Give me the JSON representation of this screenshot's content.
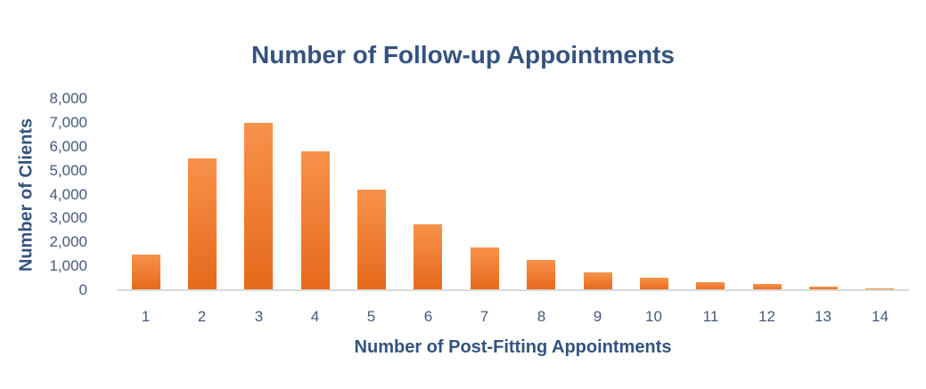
{
  "chart_data": {
    "type": "bar",
    "title": "Number of Follow-up Appointments",
    "xlabel": "Number of Post-Fitting Appointments",
    "ylabel": "Number of Clients",
    "categories": [
      "1",
      "2",
      "3",
      "4",
      "5",
      "6",
      "7",
      "8",
      "9",
      "10",
      "11",
      "12",
      "13",
      "14"
    ],
    "values": [
      1500,
      5500,
      7000,
      5800,
      4200,
      2750,
      1800,
      1270,
      750,
      520,
      340,
      250,
      140,
      70
    ],
    "ylim": [
      0,
      8000
    ],
    "ytick_step": 1000,
    "ytick_labels": [
      "0",
      "1,000",
      "2,000",
      "3,000",
      "4,000",
      "5,000",
      "6,000",
      "7,000",
      "8,000"
    ],
    "grid": false,
    "legend_position": "none",
    "colors": {
      "bar_gradient_top": "#F7924B",
      "bar_gradient_bottom": "#E6691B",
      "title_text": "#34537F",
      "axis_title_text": "#34537F",
      "tick_text": "#44597F",
      "axis_line": "#D9D9D9",
      "background": "#FFFFFF"
    }
  }
}
